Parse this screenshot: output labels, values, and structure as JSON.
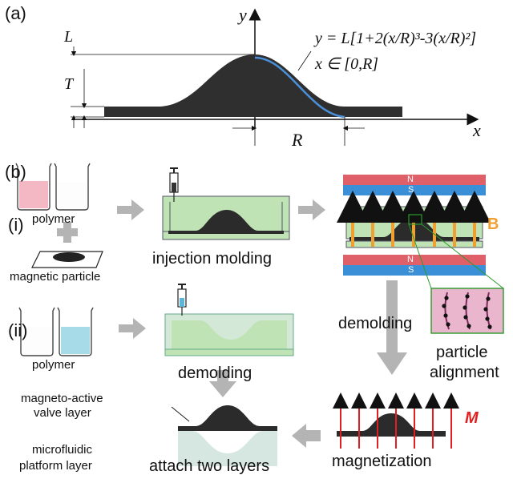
{
  "panel_a": {
    "label": "(a)",
    "axis_y": "y",
    "axis_x": "x",
    "dim_L": "L",
    "dim_T": "T",
    "dim_R": "R",
    "equation": "y = L[1+2(x/R)³-3(x/R)²]",
    "domain": "x ∈ [0,R]"
  },
  "panel_b": {
    "label": "(b)",
    "route_i": "(i)",
    "route_ii": "(ii)",
    "polymer_i": "polymer",
    "polymer_ii": "polymer",
    "magnetic_particle": "magnetic particle",
    "injection_molding": "injection molding",
    "demolding_right": "demolding",
    "demolding_left": "demolding",
    "particle_alignment_1": "particle",
    "particle_alignment_2": "alignment",
    "magnetization": "magnetization",
    "field_B": "B",
    "field_M": "M",
    "magnet_N": "N",
    "magnet_S": "S",
    "valve_layer_1": "magneto-active",
    "valve_layer_2": "valve layer",
    "platform_layer_1": "microfluidic",
    "platform_layer_2": "platform layer",
    "attach": "attach two layers"
  },
  "colors": {
    "pink_liquid": "#f4b8c4",
    "blue_liquid": "#a8dbe8",
    "mold_green": "#bfe3b4",
    "magnet_red": "#e0606a",
    "magnet_blue": "#3a8fd6",
    "arrow_orange": "#f0a030",
    "arrow_red": "#e02020",
    "arrow_gray": "#b4b4b4",
    "valve_dark": "#2b2b2b"
  }
}
